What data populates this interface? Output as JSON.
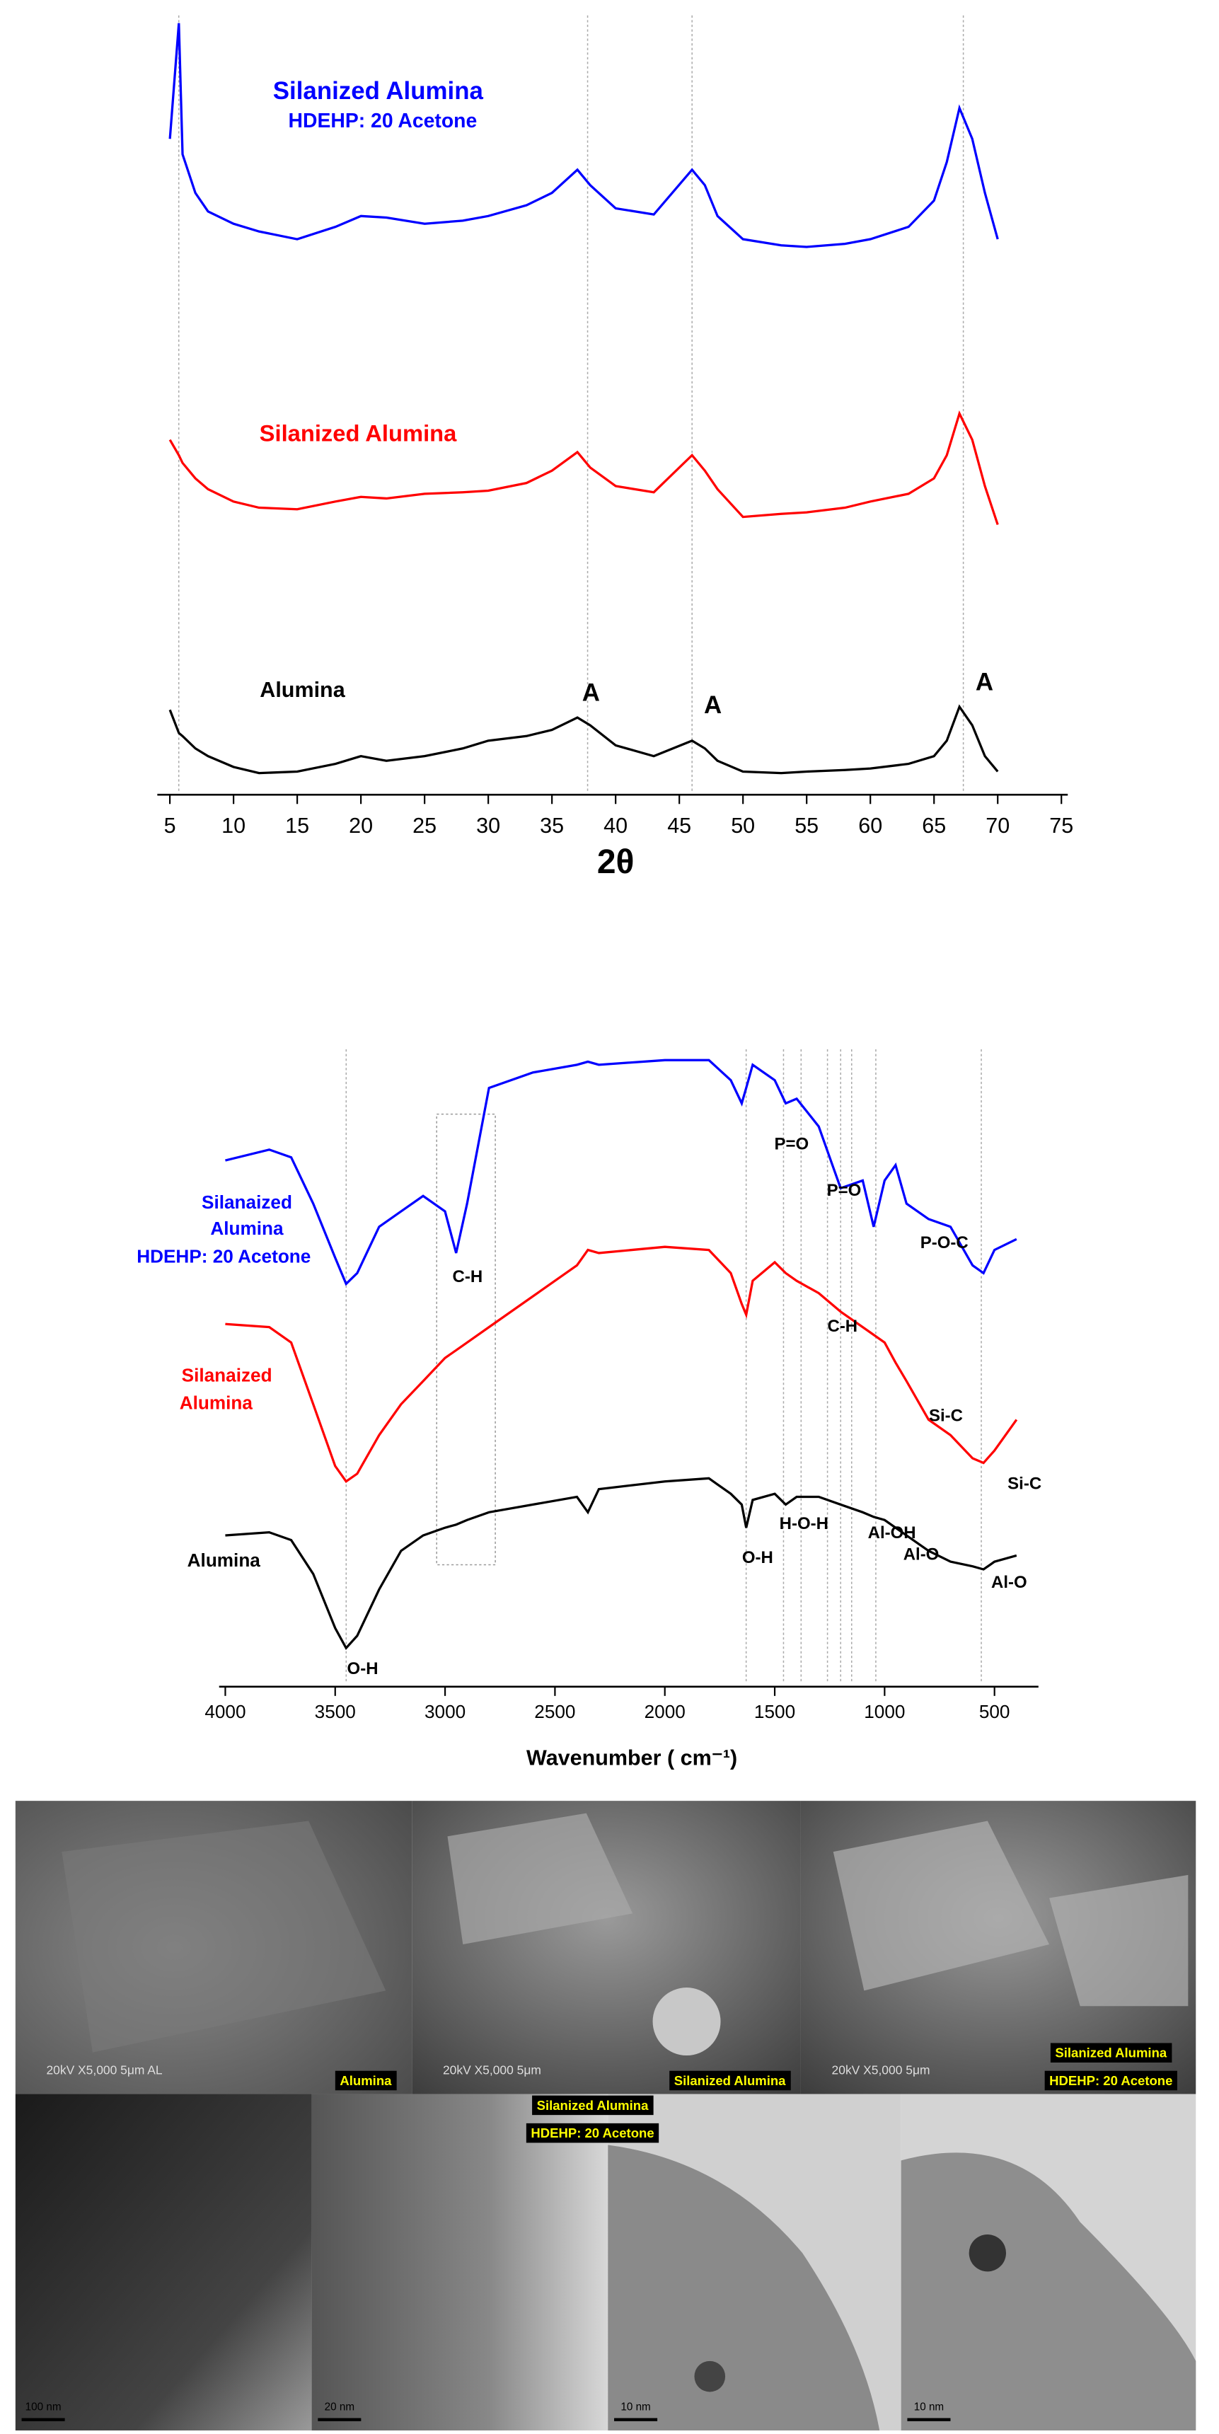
{
  "chart_data": [
    {
      "type": "line",
      "xlabel": "2θ",
      "x": [
        5,
        5.7,
        6,
        7,
        8,
        10,
        12,
        15,
        18,
        20,
        22,
        25,
        28,
        30,
        33,
        35,
        37,
        38,
        40,
        43,
        46,
        47,
        48,
        50,
        53,
        55,
        58,
        60,
        63,
        65,
        66,
        67,
        68,
        69,
        70
      ],
      "series": [
        {
          "name_lines": [
            "Silanized Alumina",
            "HDEHP: 20 Acetone"
          ],
          "color": "#0000ff",
          "values": [
            425,
            500,
            415,
            390,
            378,
            370,
            365,
            360,
            368,
            375,
            374,
            370,
            372,
            375,
            382,
            390,
            405,
            395,
            380,
            376,
            405,
            395,
            375,
            360,
            356,
            355,
            357,
            360,
            368,
            385,
            410,
            445,
            425,
            390,
            360
          ]
        },
        {
          "name_lines": [
            "Silanized Alumina"
          ],
          "color": "#ff0000",
          "values": [
            230,
            220,
            215,
            205,
            198,
            190,
            186,
            185,
            190,
            193,
            192,
            195,
            196,
            197,
            202,
            210,
            222,
            212,
            200,
            196,
            220,
            210,
            198,
            180,
            182,
            183,
            186,
            190,
            195,
            205,
            220,
            247,
            230,
            200,
            175
          ]
        },
        {
          "name_lines": [
            "Alumina"
          ],
          "color": "#000000",
          "values": [
            55,
            40,
            38,
            30,
            25,
            18,
            14,
            15,
            20,
            25,
            22,
            25,
            30,
            35,
            38,
            42,
            50,
            45,
            32,
            25,
            35,
            30,
            22,
            15,
            14,
            15,
            16,
            17,
            20,
            25,
            35,
            57,
            45,
            25,
            15
          ]
        }
      ],
      "annotations": [
        "A",
        "A",
        "A"
      ],
      "vlines": [
        5.7,
        37.8,
        46,
        67.3
      ],
      "xlim": [
        4.5,
        75.5
      ],
      "xticks": [
        5,
        10,
        15,
        20,
        25,
        30,
        35,
        40,
        45,
        50,
        55,
        60,
        65,
        70,
        75
      ],
      "ylim": [
        0,
        505
      ]
    },
    {
      "type": "line",
      "xlabel": "Wavenumber ( cm⁻¹)",
      "x": [
        4000,
        3800,
        3700,
        3600,
        3500,
        3450,
        3400,
        3300,
        3200,
        3100,
        3000,
        2950,
        2900,
        2800,
        2600,
        2400,
        2350,
        2300,
        2000,
        1800,
        1700,
        1650,
        1630,
        1600,
        1500,
        1450,
        1400,
        1300,
        1200,
        1100,
        1050,
        1000,
        950,
        900,
        800,
        700,
        600,
        550,
        500,
        400
      ],
      "series": [
        {
          "name_lines": [
            "Silanaized",
            "Alumina",
            "HDEHP: 20 Acetone"
          ],
          "color": "#0000ff",
          "values": [
            341,
            348,
            343,
            313,
            278,
            261,
            268,
            298,
            308,
            318,
            308,
            281,
            313,
            388,
            398,
            403,
            405,
            403,
            406,
            406,
            393,
            378,
            388,
            403,
            393,
            378,
            381,
            363,
            323,
            328,
            298,
            328,
            338,
            313,
            303,
            298,
            273,
            268,
            283,
            290
          ]
        },
        {
          "name_lines": [
            "Silanaized",
            "Alumina"
          ],
          "color": "#ff0000",
          "values": [
            235,
            233,
            223,
            183,
            143,
            133,
            138,
            163,
            183,
            198,
            213,
            218,
            223,
            233,
            253,
            273,
            283,
            281,
            285,
            283,
            268,
            248,
            241,
            263,
            275,
            268,
            263,
            255,
            243,
            233,
            228,
            223,
            210,
            198,
            173,
            163,
            148,
            145,
            153,
            173
          ]
        },
        {
          "name_lines": [
            "Alumina"
          ],
          "color": "#000000",
          "values": [
            98,
            100,
            95,
            73,
            38,
            25,
            33,
            63,
            88,
            98,
            103,
            105,
            108,
            113,
            118,
            123,
            113,
            128,
            133,
            135,
            125,
            118,
            103,
            121,
            125,
            118,
            123,
            123,
            118,
            113,
            110,
            108,
            103,
            98,
            88,
            81,
            78,
            76,
            81,
            85
          ]
        }
      ],
      "annotations": [
        "C-H",
        "P=O",
        "P=O",
        "P-O-C",
        "C-H",
        "Si-C",
        "Si-C",
        "O-H",
        "H-O-H",
        "Al-OH",
        "Al-O",
        "Al-O",
        "O-H"
      ],
      "vlines": [
        3450,
        1630,
        1460,
        1380,
        1260,
        1200,
        1150,
        1040,
        560
      ],
      "xlim": [
        4000,
        300
      ],
      "xticks": [
        4000,
        3500,
        3000,
        2500,
        2000,
        1500,
        1000,
        500
      ],
      "ylim": [
        0,
        413
      ]
    }
  ],
  "sem_images": [
    {
      "label_lines": [
        "Alumina"
      ],
      "info": "20kV  X5,000  5μm  AL"
    },
    {
      "label_lines": [
        "Silanized Alumina"
      ],
      "info": "20kV  X5,000  5μm"
    },
    {
      "label_lines": [
        "Silanized Alumina",
        "HDEHP: 20 Acetone"
      ],
      "info": "20kV  X5,000  5μm"
    }
  ],
  "tem_label_lines": [
    "Silanized Alumina",
    "HDEHP: 20 Acetone"
  ],
  "tem_images": [
    {
      "scale": "100 nm"
    },
    {
      "scale": "20 nm"
    },
    {
      "scale": "10 nm"
    },
    {
      "scale": "10 nm"
    }
  ]
}
